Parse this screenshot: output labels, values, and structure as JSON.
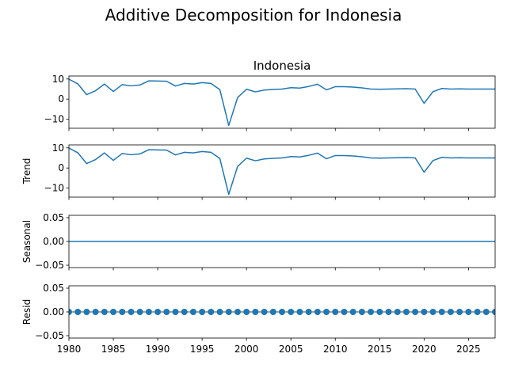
{
  "figure": {
    "suptitle": "Additive Decomposition for Indonesia"
  },
  "colors": {
    "series": "#1f77b4",
    "axes": "#000000",
    "background": "#ffffff"
  },
  "chart_data": [
    {
      "type": "line",
      "title": "Indonesia",
      "ylabel": "",
      "xlim": [
        1980,
        2028
      ],
      "ylim": [
        -14.5,
        11.5
      ],
      "yticks": [
        10,
        0,
        -10
      ],
      "x": [
        1980,
        1981,
        1982,
        1983,
        1984,
        1985,
        1986,
        1987,
        1988,
        1989,
        1990,
        1991,
        1992,
        1993,
        1994,
        1995,
        1996,
        1997,
        1998,
        1999,
        2000,
        2001,
        2002,
        2003,
        2004,
        2005,
        2006,
        2007,
        2008,
        2009,
        2010,
        2011,
        2012,
        2013,
        2014,
        2015,
        2016,
        2017,
        2018,
        2019,
        2020,
        2021,
        2022,
        2023,
        2024,
        2025,
        2026,
        2027,
        2028
      ],
      "values": [
        9.9,
        7.6,
        2.2,
        4.2,
        7.5,
        3.8,
        7.2,
        6.6,
        7.0,
        9.1,
        9.0,
        8.9,
        6.5,
        7.8,
        7.5,
        8.2,
        7.8,
        4.7,
        -13.1,
        0.8,
        4.9,
        3.6,
        4.5,
        4.8,
        5.0,
        5.7,
        5.5,
        6.3,
        7.4,
        4.6,
        6.2,
        6.2,
        6.0,
        5.6,
        5.0,
        4.9,
        5.0,
        5.1,
        5.2,
        5.0,
        -2.1,
        3.7,
        5.3,
        5.0,
        5.1,
        5.0,
        5.0,
        5.0,
        5.0
      ],
      "show_xticklabels": false
    },
    {
      "type": "line",
      "title": "",
      "ylabel": "Trend",
      "xlim": [
        1980,
        2028
      ],
      "ylim": [
        -14.5,
        11.5
      ],
      "yticks": [
        10,
        0,
        -10
      ],
      "x": [
        1980,
        1981,
        1982,
        1983,
        1984,
        1985,
        1986,
        1987,
        1988,
        1989,
        1990,
        1991,
        1992,
        1993,
        1994,
        1995,
        1996,
        1997,
        1998,
        1999,
        2000,
        2001,
        2002,
        2003,
        2004,
        2005,
        2006,
        2007,
        2008,
        2009,
        2010,
        2011,
        2012,
        2013,
        2014,
        2015,
        2016,
        2017,
        2018,
        2019,
        2020,
        2021,
        2022,
        2023,
        2024,
        2025,
        2026,
        2027,
        2028
      ],
      "values": [
        9.9,
        7.6,
        2.2,
        4.2,
        7.5,
        3.8,
        7.2,
        6.6,
        7.0,
        9.1,
        9.0,
        8.9,
        6.5,
        7.8,
        7.5,
        8.2,
        7.8,
        4.7,
        -13.1,
        0.8,
        4.9,
        3.6,
        4.5,
        4.8,
        5.0,
        5.7,
        5.5,
        6.3,
        7.4,
        4.6,
        6.2,
        6.2,
        6.0,
        5.6,
        5.0,
        4.9,
        5.0,
        5.1,
        5.2,
        5.0,
        -2.1,
        3.7,
        5.3,
        5.0,
        5.1,
        5.0,
        5.0,
        5.0,
        5.0
      ],
      "show_xticklabels": false
    },
    {
      "type": "line",
      "title": "",
      "ylabel": "Seasonal",
      "xlim": [
        1980,
        2028
      ],
      "ylim": [
        -0.055,
        0.055
      ],
      "yticks": [
        0.05,
        0.0,
        -0.05
      ],
      "ytick_labels": [
        "0.05",
        "0.00",
        "−0.05"
      ],
      "x": [
        1980,
        2028
      ],
      "values": [
        0.0,
        0.0
      ],
      "show_xticklabels": false
    },
    {
      "type": "scatter",
      "title": "",
      "ylabel": "Resid",
      "xlim": [
        1980,
        2028
      ],
      "ylim": [
        -0.055,
        0.055
      ],
      "yticks": [
        0.05,
        0.0,
        -0.05
      ],
      "ytick_labels": [
        "0.05",
        "0.00",
        "−0.05"
      ],
      "x": [
        1980,
        1981,
        1982,
        1983,
        1984,
        1985,
        1986,
        1987,
        1988,
        1989,
        1990,
        1991,
        1992,
        1993,
        1994,
        1995,
        1996,
        1997,
        1998,
        1999,
        2000,
        2001,
        2002,
        2003,
        2004,
        2005,
        2006,
        2007,
        2008,
        2009,
        2010,
        2011,
        2012,
        2013,
        2014,
        2015,
        2016,
        2017,
        2018,
        2019,
        2020,
        2021,
        2022,
        2023,
        2024,
        2025,
        2026,
        2027,
        2028
      ],
      "values": [
        0,
        0,
        0,
        0,
        0,
        0,
        0,
        0,
        0,
        0,
        0,
        0,
        0,
        0,
        0,
        0,
        0,
        0,
        0,
        0,
        0,
        0,
        0,
        0,
        0,
        0,
        0,
        0,
        0,
        0,
        0,
        0,
        0,
        0,
        0,
        0,
        0,
        0,
        0,
        0,
        0,
        0,
        0,
        0,
        0,
        0,
        0,
        0,
        0
      ],
      "show_xticklabels": true,
      "xticks": [
        1980,
        1985,
        1990,
        1995,
        2000,
        2005,
        2010,
        2015,
        2020,
        2025
      ]
    }
  ]
}
